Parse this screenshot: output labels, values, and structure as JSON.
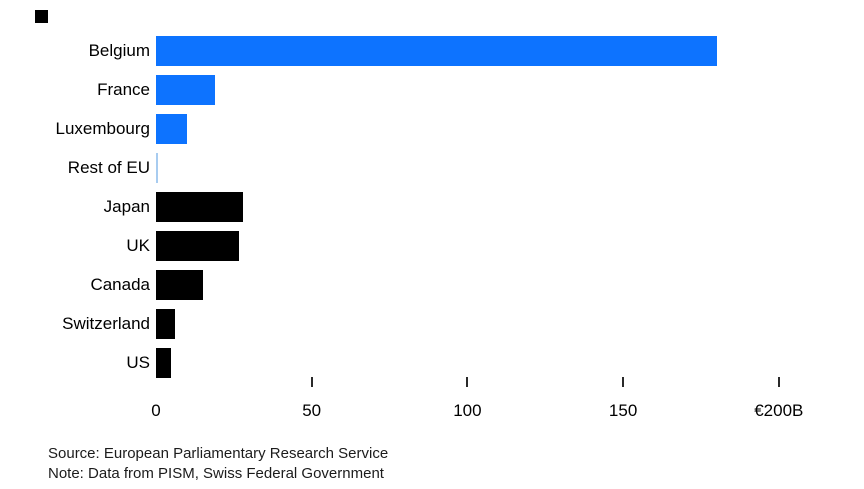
{
  "brand": {
    "mark_icon": "black-square"
  },
  "chart_data": {
    "type": "bar",
    "orientation": "horizontal",
    "title": "",
    "xlabel": "",
    "ylabel": "",
    "categories": [
      "Belgium",
      "France",
      "Luxembourg",
      "Rest of EU",
      "Japan",
      "UK",
      "Canada",
      "Switzerland",
      "US"
    ],
    "values": [
      180,
      19,
      10,
      0.6,
      28,
      26.5,
      15,
      6.2,
      4.7
    ],
    "unit": "€B",
    "bar_colors": [
      "#0d73ff",
      "#0d73ff",
      "#0d73ff",
      "#a8ccf0",
      "#000000",
      "#000000",
      "#000000",
      "#000000",
      "#000000"
    ],
    "xlim": [
      0,
      200
    ],
    "x_ticks": [
      0,
      50,
      100,
      150,
      200
    ],
    "x_tick_labels": [
      "0",
      "50",
      "100",
      "150",
      "€200B"
    ],
    "tick_marks_at_zero": false,
    "grid": false,
    "legend": false
  },
  "footer": {
    "source": "Source: European Parliamentary Research Service",
    "note": "Note: Data from PISM, Swiss Federal Government"
  },
  "colors": {
    "eu_bar": "#0d73ff",
    "rest_of_eu_bar": "#a8ccf0",
    "non_eu_bar": "#000000",
    "text": "#000000",
    "background": "#ffffff"
  }
}
